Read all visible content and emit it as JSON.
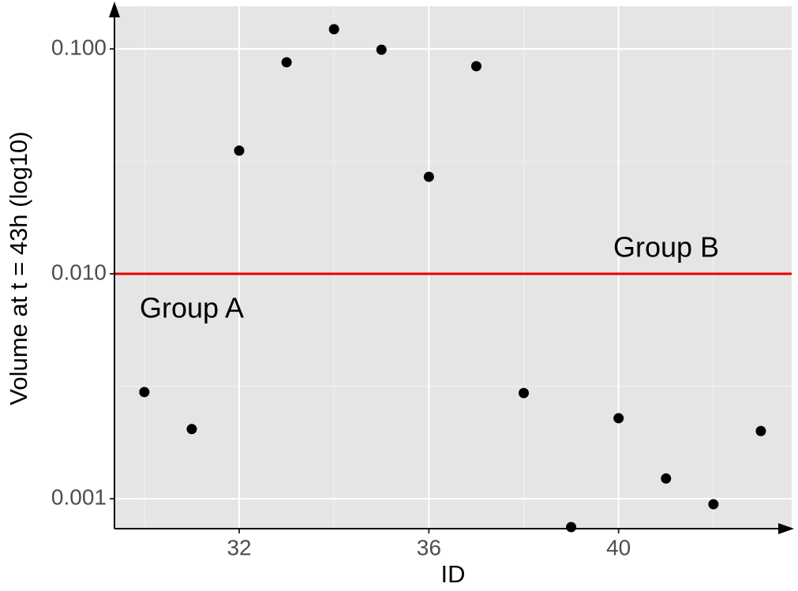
{
  "chart_data": {
    "type": "scatter",
    "x_label": "ID",
    "y_label": "Volume at t = 43h (log10)",
    "x": [
      30,
      31,
      32,
      33,
      34,
      35,
      36,
      37,
      38,
      39,
      40,
      41,
      42,
      43
    ],
    "values": [
      0.00298,
      0.00204,
      0.0353,
      0.0872,
      0.1224,
      0.0992,
      0.027,
      0.0838,
      0.00295,
      0.000748,
      0.00228,
      0.00123,
      0.000945,
      0.002
    ],
    "color": "#000000",
    "xlim": [
      29.37,
      43.65
    ],
    "xticks": [
      32,
      36,
      40
    ],
    "xminor": [
      30,
      34,
      38,
      42
    ],
    "ylim": [
      0.000736,
      0.1547
    ],
    "yticks": [
      {
        "value": 0.1,
        "label": "0.100"
      },
      {
        "value": 0.01,
        "label": "0.010"
      },
      {
        "value": 0.001,
        "label": "0.001"
      }
    ],
    "yminor": [
      0.0316,
      0.00316
    ],
    "ylog": true,
    "grid": true,
    "hline": {
      "value": 0.01,
      "color": "#e00000"
    },
    "annotations": [
      "Group A",
      "Group B"
    ]
  }
}
